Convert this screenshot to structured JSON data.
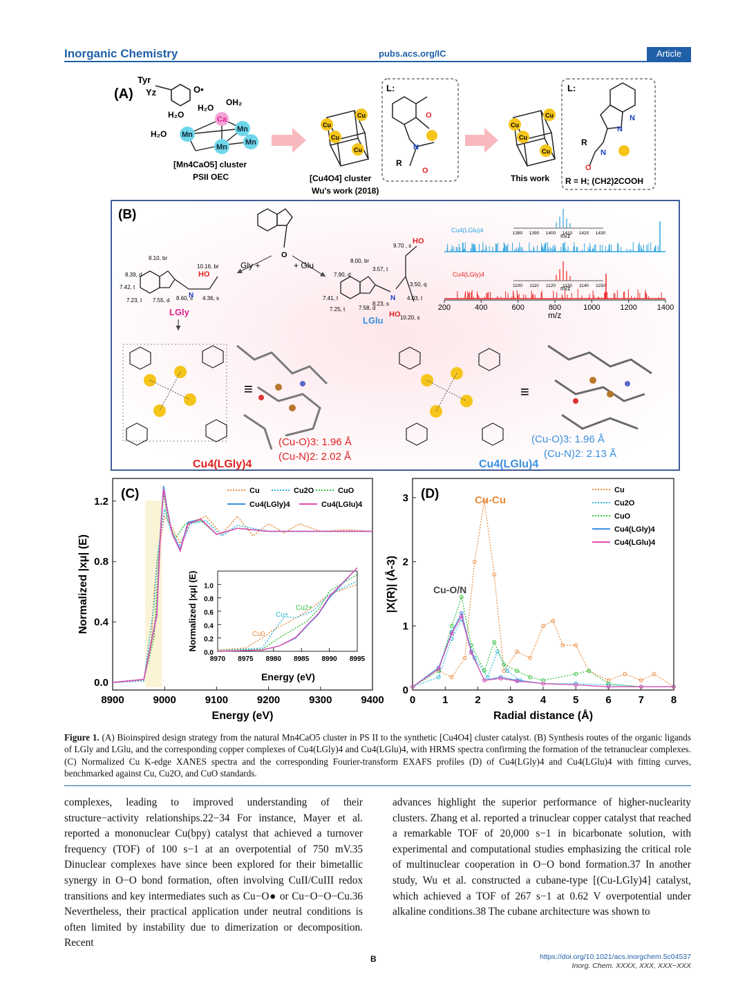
{
  "header": {
    "journal": "Inorganic Chemistry",
    "site": "pubs.acs.org/IC",
    "badge": "Article"
  },
  "figure": {
    "panelA": {
      "label": "(A)",
      "tyr": "Tyr",
      "yz": "Yz",
      "oec_name": "[Mn4CaO5] cluster",
      "oec_sub": "PSII OEC",
      "cu4_name": "[Cu4O4] cluster",
      "cu4_sub": "Wu's work (2018)",
      "this_work": "This work",
      "ligand_label": "L:",
      "r_def": "R = H; (CH2)2COOH"
    },
    "panelB": {
      "label": "(B)",
      "gly": "Gly +",
      "glu": "+ Glu",
      "lgly": "LGly",
      "lglu": "LGlu",
      "cu4lgly": "Cu4(LGly)4",
      "cu4lglu": "Cu4(LGlu)4",
      "gly_cuo": "(Cu-O)3: 1.96 Å",
      "gly_cun": "(Cu-N)2: 2.02 Å",
      "glu_cuo": "(Cu-O)3: 1.96 Å",
      "glu_cun": "(Cu-N)2: 2.13 Å",
      "nmr_gly": [
        "8.10, br",
        "8.39, d",
        "7.42, t",
        "7.23, t",
        "7.55, d",
        "8.60, s",
        "4.36, s",
        "10.16, br"
      ],
      "nmr_glu": [
        "9.70 , s",
        "8.00, br",
        "7.90, d",
        "3.57, t",
        "3.50, q",
        "4.03, t",
        "7.41, t",
        "7.58, d",
        "7.25, t",
        "8.23, s",
        "10.20, s"
      ],
      "hrms_xlabel": "m/z",
      "hrms_xticks": [
        "200",
        "400",
        "600",
        "800",
        "1000",
        "1200",
        "1400"
      ],
      "hrms_glu_label": "Cu4(LGlu)4",
      "hrms_gly_label": "Cu4(LGly)4",
      "inset_glu_ticks": [
        "1380",
        "1390",
        "1400",
        "1410",
        "1420",
        "1430"
      ],
      "inset_gly_ticks": [
        "1100",
        "1110",
        "1120",
        "1130",
        "1140",
        "1150"
      ]
    }
  },
  "chart_data": [
    {
      "type": "line",
      "panel": "(C)",
      "title": "",
      "xlabel": "Energy (eV)",
      "ylabel": "Normalized |xμ| (E)",
      "xlim": [
        8900,
        9400
      ],
      "ylim": [
        -0.05,
        1.35
      ],
      "xticks": [
        "8900",
        "9000",
        "9100",
        "9200",
        "9300",
        "9400"
      ],
      "yticks": [
        "0.0",
        "0.4",
        "0.8",
        "1.2"
      ],
      "legend": [
        "Cu",
        "Cu2O",
        "CuO",
        "Cu4(LGly)4",
        "Cu4(LGlu)4"
      ],
      "colors": [
        "#e98a3b",
        "#29b6d8",
        "#2fbf3a",
        "#3a8fe0",
        "#e24fb3"
      ],
      "series": [
        {
          "name": "Cu",
          "x": [
            8900,
            8960,
            8975,
            8980,
            8990,
            9000,
            9010,
            9030,
            9050,
            9080,
            9110,
            9140,
            9170,
            9200,
            9230,
            9260,
            9300,
            9350,
            9400
          ],
          "y": [
            0.0,
            0.01,
            0.3,
            0.6,
            0.9,
            1.1,
            1.05,
            0.92,
            1.06,
            1.1,
            0.98,
            1.1,
            0.97,
            1.05,
            0.99,
            1.05,
            1.0,
            1.01,
            1.0
          ]
        },
        {
          "name": "Cu2O",
          "x": [
            8900,
            8960,
            8980,
            8985,
            8995,
            9000,
            9010,
            9030,
            9050,
            9080,
            9110,
            9140,
            9200,
            9300,
            9400
          ],
          "y": [
            0.0,
            0.01,
            0.52,
            0.8,
            1.05,
            1.15,
            1.02,
            0.9,
            1.05,
            1.07,
            0.97,
            1.04,
            1.0,
            1.0,
            1.0
          ]
        },
        {
          "name": "CuO",
          "x": [
            8900,
            8960,
            8980,
            8990,
            8998,
            9005,
            9020,
            9040,
            9070,
            9100,
            9140,
            9200,
            9300,
            9400
          ],
          "y": [
            0.0,
            0.02,
            0.3,
            0.9,
            1.25,
            1.1,
            0.95,
            1.05,
            1.07,
            0.98,
            1.02,
            1.0,
            1.0,
            1.0
          ]
        },
        {
          "name": "Cu4(LGly)4",
          "x": [
            8900,
            8960,
            8985,
            8992,
            8998,
            9005,
            9015,
            9030,
            9045,
            9070,
            9100,
            9140,
            9200,
            9300,
            9400
          ],
          "y": [
            0.0,
            0.02,
            0.45,
            1.0,
            1.3,
            1.15,
            0.98,
            0.88,
            1.06,
            1.08,
            0.98,
            1.02,
            1.0,
            1.0,
            1.0
          ]
        },
        {
          "name": "Cu4(LGlu)4",
          "x": [
            8900,
            8960,
            8985,
            8992,
            8998,
            9005,
            9015,
            9030,
            9045,
            9070,
            9100,
            9140,
            9200,
            9300,
            9400
          ],
          "y": [
            0.0,
            0.02,
            0.44,
            0.98,
            1.28,
            1.14,
            0.98,
            0.87,
            1.05,
            1.08,
            0.98,
            1.02,
            1.0,
            1.0,
            1.0
          ]
        }
      ],
      "inset": {
        "xlabel": "Energy (eV)",
        "ylabel": "Normalized |xμ| (E)",
        "xlim": [
          8970,
          8995
        ],
        "ylim": [
          0.0,
          1.2
        ],
        "xticks": [
          "8970",
          "8975",
          "8980",
          "8985",
          "8990",
          "8995"
        ],
        "yticks": [
          "0.0",
          "0.2",
          "0.4",
          "0.6",
          "0.8",
          "1.0"
        ],
        "annotations": [
          "Cu0",
          "Cu+",
          "Cu2+"
        ],
        "series": [
          {
            "name": "Cu",
            "x": [
              8970,
              8975,
              8978,
              8980,
              8983,
              8986,
              8990,
              8995
            ],
            "y": [
              0.02,
              0.05,
              0.2,
              0.32,
              0.45,
              0.6,
              0.85,
              1.0
            ]
          },
          {
            "name": "Cu2O",
            "x": [
              8970,
              8978,
              8980,
              8982,
              8984,
              8987,
              8990,
              8995
            ],
            "y": [
              0.01,
              0.05,
              0.3,
              0.52,
              0.5,
              0.6,
              0.85,
              1.05
            ]
          },
          {
            "name": "CuO",
            "x": [
              8970,
              8978,
              8981,
              8984,
              8986,
              8988,
              8990,
              8995
            ],
            "y": [
              0.01,
              0.03,
              0.2,
              0.35,
              0.45,
              0.62,
              0.9,
              1.15
            ]
          },
          {
            "name": "Cu4(LGly)4",
            "x": [
              8970,
              8978,
              8981,
              8984,
              8986,
              8988,
              8990,
              8995
            ],
            "y": [
              0.0,
              0.02,
              0.08,
              0.2,
              0.38,
              0.55,
              0.8,
              1.25
            ]
          },
          {
            "name": "Cu4(LGlu)4",
            "x": [
              8970,
              8978,
              8981,
              8984,
              8986,
              8988,
              8990,
              8995
            ],
            "y": [
              0.0,
              0.02,
              0.08,
              0.21,
              0.39,
              0.56,
              0.82,
              1.25
            ]
          }
        ]
      }
    },
    {
      "type": "line",
      "panel": "(D)",
      "title": "",
      "xlabel": "Radial distance (Å)",
      "ylabel": "|X(R)| (Å-3)",
      "xlim": [
        0,
        8
      ],
      "ylim": [
        0,
        3.3
      ],
      "xticks": [
        "0",
        "1",
        "2",
        "3",
        "4",
        "5",
        "6",
        "7",
        "8"
      ],
      "yticks": [
        "0",
        "1",
        "2",
        "3"
      ],
      "legend": [
        "Cu",
        "Cu2O",
        "CuO",
        "Cu4(LGly)4",
        "Cu4(LGlu)4"
      ],
      "colors": [
        "#e98a3b",
        "#29b6d8",
        "#2fbf3a",
        "#3a8fe0",
        "#e24fb3"
      ],
      "annotations": [
        "Cu-Cu",
        "Cu-O/N"
      ],
      "series": [
        {
          "name": "Cu",
          "x": [
            0,
            0.8,
            1.2,
            1.6,
            1.9,
            2.2,
            2.5,
            2.8,
            3.2,
            3.6,
            4.0,
            4.3,
            4.6,
            5.0,
            5.4,
            6.0,
            6.5,
            7.0,
            7.4,
            8.0
          ],
          "y": [
            0.05,
            0.3,
            0.2,
            0.5,
            2.0,
            2.95,
            1.8,
            0.3,
            0.6,
            0.5,
            1.0,
            1.08,
            0.7,
            0.7,
            0.3,
            0.15,
            0.25,
            0.15,
            0.25,
            0.05
          ]
        },
        {
          "name": "Cu2O",
          "x": [
            0,
            0.8,
            1.2,
            1.5,
            1.9,
            2.3,
            2.6,
            2.9,
            3.3,
            4,
            5,
            6,
            7,
            8
          ],
          "y": [
            0.05,
            0.2,
            0.8,
            1.1,
            0.5,
            0.2,
            0.6,
            0.3,
            0.15,
            0.1,
            0.1,
            0.08,
            0.05,
            0.05
          ]
        },
        {
          "name": "CuO",
          "x": [
            0,
            0.8,
            1.2,
            1.5,
            1.8,
            2.2,
            2.5,
            2.8,
            3.2,
            3.6,
            4,
            5,
            5.4,
            6,
            7,
            8
          ],
          "y": [
            0.05,
            0.3,
            1.0,
            1.45,
            0.7,
            0.3,
            0.75,
            0.4,
            0.3,
            0.2,
            0.15,
            0.25,
            0.3,
            0.1,
            0.05,
            0.05
          ]
        },
        {
          "name": "Cu4(LGly)4",
          "x": [
            0,
            0.8,
            1.2,
            1.5,
            1.8,
            2.2,
            2.7,
            3.2,
            4,
            5,
            6,
            7,
            8
          ],
          "y": [
            0.05,
            0.35,
            0.9,
            1.2,
            0.6,
            0.15,
            0.2,
            0.15,
            0.1,
            0.08,
            0.05,
            0.05,
            0.05
          ]
        },
        {
          "name": "Cu4(LGlu)4",
          "x": [
            0,
            0.8,
            1.2,
            1.5,
            1.8,
            2.2,
            2.7,
            3.2,
            4,
            5,
            6,
            7,
            8
          ],
          "y": [
            0.05,
            0.33,
            0.88,
            1.15,
            0.58,
            0.15,
            0.18,
            0.14,
            0.1,
            0.08,
            0.05,
            0.05,
            0.05
          ]
        }
      ]
    }
  ],
  "caption": {
    "label": "Figure 1.",
    "text": "(A) Bioinspired design strategy from the natural Mn4CaO5 cluster in PS II to the synthetic [Cu4O4] cluster catalyst. (B) Synthesis routes of the organic ligands of LGly and LGlu, and the corresponding copper complexes of Cu4(LGly)4 and Cu4(LGlu)4, with HRMS spectra confirming the formation of the tetranuclear complexes. (C) Normalized Cu K-edge XANES spectra and the corresponding Fourier-transform EXAFS profiles (D) of Cu4(LGly)4 and Cu4(LGlu)4 with fitting curves, benchmarked against Cu, Cu2O, and CuO standards."
  },
  "body": {
    "left": "complexes, leading to improved understanding of their structure−activity relationships.22−34 For instance, Mayer et al. reported a mononuclear Cu(bpy) catalyst that achieved a turnover frequency (TOF) of 100 s−1 at an overpotential of 750 mV.35 Dinuclear complexes have since been explored for their bimetallic synergy in O−O bond formation, often involving CuII/CuIII redox transitions and key intermediates such as Cu−O● or Cu−O−O−Cu.36 Nevertheless, their practical application under neutral conditions is often limited by instability due to dimerization or decomposition. Recent",
    "right": "advances highlight the superior performance of higher-nuclearity clusters. Zhang et al. reported a trinuclear copper catalyst that reached a remarkable TOF of 20,000 s−1 in bicarbonate solution, with experimental and computational studies emphasizing the critical role of multinuclear cooperation in O−O bond formation.37 In another study, Wu et al. constructed a cubane-type [(Cu-LGly)4] catalyst, which achieved a TOF of 267 s−1 at 0.62 V overpotential under alkaline conditions.38 The cubane architecture was shown to"
  },
  "footer": {
    "page": "B",
    "doi": "https://doi.org/10.1021/acs.inorgchem.5c04537",
    "citation": "Inorg. Chem. XXXX, XXX, XXX−XXX"
  }
}
